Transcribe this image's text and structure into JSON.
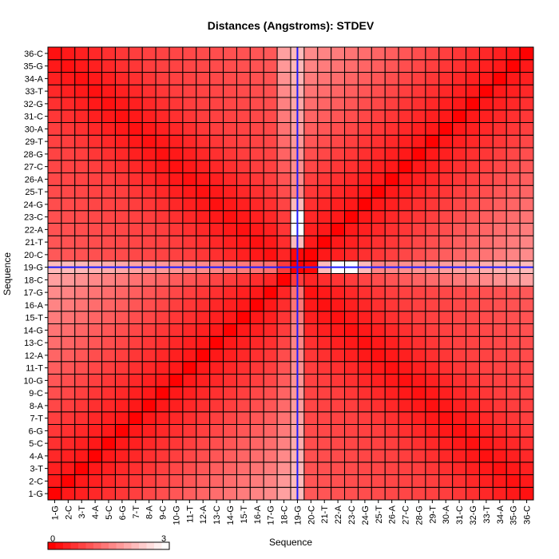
{
  "chart_data": {
    "type": "heatmap",
    "title": "Distances (Angstroms):  STDEV",
    "xlabel": "Sequence",
    "ylabel": "Sequence",
    "x_categories": [
      "1-G",
      "2-C",
      "3-T",
      "4-A",
      "5-C",
      "6-G",
      "7-T",
      "8-A",
      "9-C",
      "10-G",
      "11-T",
      "12-A",
      "13-C",
      "14-G",
      "15-T",
      "16-A",
      "17-G",
      "18-C",
      "19-G",
      "20-C",
      "21-T",
      "22-A",
      "23-C",
      "24-G",
      "25-T",
      "26-A",
      "27-C",
      "28-G",
      "29-T",
      "30-A",
      "31-C",
      "32-G",
      "33-T",
      "34-A",
      "35-G",
      "36-C"
    ],
    "y_categories": [
      "1-G",
      "2-C",
      "3-T",
      "4-A",
      "5-C",
      "6-G",
      "7-T",
      "8-A",
      "9-C",
      "10-G",
      "11-T",
      "12-A",
      "13-C",
      "14-G",
      "15-T",
      "16-A",
      "17-G",
      "18-C",
      "19-G",
      "20-C",
      "21-T",
      "22-A",
      "23-C",
      "24-G",
      "25-T",
      "26-A",
      "27-C",
      "28-G",
      "29-T",
      "30-A",
      "31-C",
      "32-G",
      "33-T",
      "34-A",
      "35-G",
      "36-C"
    ],
    "y_order": "bottom-to-top",
    "highlight_index": 18,
    "highlight_color": "#1a1aff",
    "colorscale": {
      "min": 0,
      "max": 3,
      "low_color": "#ff0000",
      "high_color": "#ffffff",
      "min_label": "0",
      "max_label": "3"
    },
    "grid": true,
    "legend": "colorbar bottom-left",
    "estimated_values": "matrix[i][j] = STDEV (Å) between residue i and j (0-based); symmetric; values estimated from cell color"
  }
}
